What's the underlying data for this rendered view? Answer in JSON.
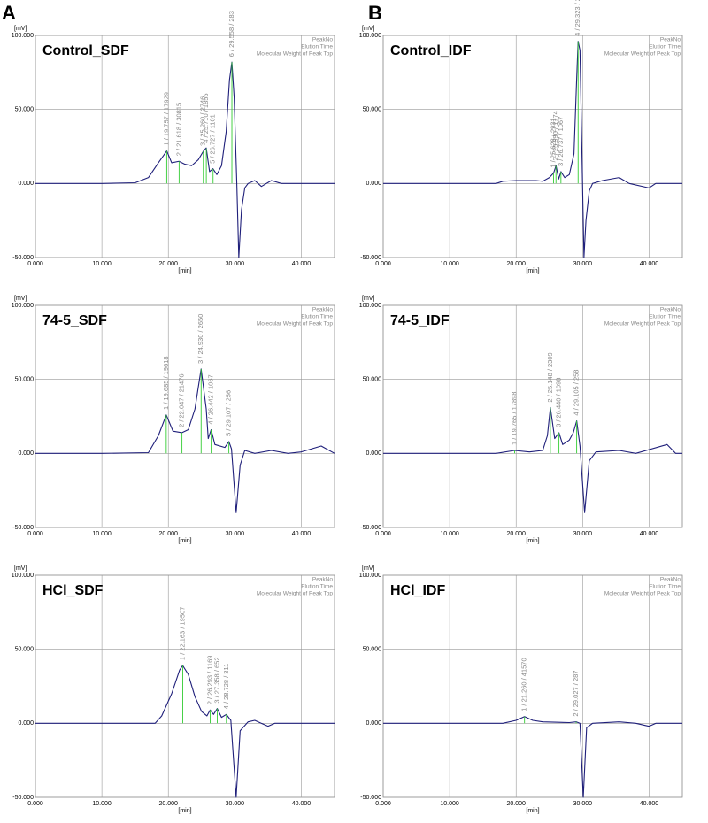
{
  "panels": [
    "A",
    "B"
  ],
  "chart_data": [
    {
      "type": "line",
      "title": "Control_SDF",
      "ylabel": "[mV]",
      "xlabel": "[min]",
      "header_labels": [
        "PeakNo",
        "Elution Time",
        "Molecular Weight of Peak Top"
      ],
      "xlim": [
        0,
        45
      ],
      "xticks": [
        {
          "value": 0,
          "label": "0.000"
        },
        {
          "value": 10,
          "label": "10.000"
        },
        {
          "value": 20,
          "label": "20.000"
        },
        {
          "value": 30,
          "label": "30.000"
        },
        {
          "value": 40,
          "label": "40.000"
        }
      ],
      "ylim": [
        -50,
        100
      ],
      "yticks": [
        {
          "value": -50,
          "label": "-50.000"
        },
        {
          "value": 0,
          "label": "0.000"
        },
        {
          "value": 50,
          "label": "50.000"
        },
        {
          "value": 100,
          "label": "100.000"
        }
      ],
      "grid": true,
      "peak_color": "#33cc33",
      "x": [
        0,
        10,
        15,
        17,
        18.5,
        19.76,
        20.5,
        21.6,
        22.5,
        23.5,
        24.5,
        25.3,
        25.7,
        26.2,
        26.7,
        27.3,
        28,
        28.7,
        29.2,
        29.56,
        29.9,
        30.3,
        30.6,
        31,
        31.5,
        32,
        33,
        34,
        35.5,
        37,
        40,
        45
      ],
      "series": [
        {
          "color": "#1f1f7a",
          "values": [
            0,
            0,
            0.5,
            4,
            14,
            22,
            14,
            15,
            13,
            12,
            16,
            22,
            24,
            8,
            10,
            6,
            12,
            35,
            70,
            82,
            58,
            0,
            -50,
            -18,
            -3,
            0,
            2,
            -2,
            2,
            0,
            0,
            0
          ]
        }
      ],
      "peaks": [
        {
          "label": "1 / 19.757 / 17929",
          "x": 19.757
        },
        {
          "label": "2 / 21.618 / 30815",
          "x": 21.618
        },
        {
          "label": "3 / 25.260 / 2746",
          "x": 25.26
        },
        {
          "label": "4 / 25.710 / 1855",
          "x": 25.71
        },
        {
          "label": "5 / 26.727 / 1101",
          "x": 26.727
        },
        {
          "label": "6 / 29.558 / 283",
          "x": 29.558
        }
      ]
    },
    {
      "type": "line",
      "title": "Control_IDF",
      "ylabel": "[mV]",
      "xlabel": "[min]",
      "header_labels": [
        "PeakNo",
        "Elution Time",
        "Molecular Weight of Peak Top"
      ],
      "xlim": [
        0,
        45
      ],
      "xticks": [
        {
          "value": 0,
          "label": "0.000"
        },
        {
          "value": 10,
          "label": "10.000"
        },
        {
          "value": 20,
          "label": "20.000"
        },
        {
          "value": 30,
          "label": "30.000"
        },
        {
          "value": 40,
          "label": "40.000"
        }
      ],
      "ylim": [
        -50,
        100
      ],
      "yticks": [
        {
          "value": -50,
          "label": "-50.000"
        },
        {
          "value": 0,
          "label": "0.000"
        },
        {
          "value": 50,
          "label": "50.000"
        },
        {
          "value": 100,
          "label": "100.000"
        }
      ],
      "grid": true,
      "peak_color": "#33cc33",
      "x": [
        0,
        10,
        17,
        18,
        20,
        23,
        24,
        25,
        25.63,
        26.0,
        26.4,
        26.74,
        27.3,
        28,
        28.7,
        29.1,
        29.32,
        29.6,
        29.9,
        30.2,
        30.5,
        31,
        31.5,
        33,
        35.5,
        37,
        40,
        41,
        45
      ],
      "series": [
        {
          "color": "#1f1f7a",
          "values": [
            0,
            0,
            0,
            1.5,
            2,
            2,
            1.5,
            4,
            7,
            12,
            3,
            8,
            4,
            6,
            20,
            70,
            96,
            90,
            20,
            -50,
            -25,
            -5,
            0,
            2,
            4,
            0,
            -3,
            0,
            0
          ]
        }
      ],
      "peaks": [
        {
          "label": "1 / 25.628 / 2931",
          "x": 25.628
        },
        {
          "label": "2 / 25.990 / 1774",
          "x": 25.99
        },
        {
          "label": "3 / 26.737 / 1067",
          "x": 26.737
        },
        {
          "label": "4 / 29.323 / 273",
          "x": 29.323
        }
      ]
    },
    {
      "type": "line",
      "title": "74-5_SDF",
      "ylabel": "[mV]",
      "xlabel": "[min]",
      "header_labels": [
        "PeakNo",
        "Elution Time",
        "Molecular Weight of Peak Top"
      ],
      "xlim": [
        0,
        45
      ],
      "xticks": [
        {
          "value": 0,
          "label": "0.000"
        },
        {
          "value": 10,
          "label": "10.000"
        },
        {
          "value": 20,
          "label": "20.000"
        },
        {
          "value": 30,
          "label": "30.000"
        },
        {
          "value": 40,
          "label": "40.000"
        }
      ],
      "ylim": [
        -50,
        100
      ],
      "yticks": [
        {
          "value": -50,
          "label": "-50.000"
        },
        {
          "value": 0,
          "label": "0.000"
        },
        {
          "value": 50,
          "label": "50.000"
        },
        {
          "value": 100,
          "label": "100.000"
        }
      ],
      "grid": true,
      "peak_color": "#33cc33",
      "x": [
        0,
        10,
        17,
        18.5,
        19.69,
        20.7,
        22.05,
        23,
        24,
        24.93,
        25.7,
        26,
        26.44,
        27,
        28.5,
        29.11,
        29.5,
        30.2,
        30.8,
        31.5,
        33,
        35.5,
        38,
        40,
        43,
        45
      ],
      "series": [
        {
          "color": "#1f1f7a",
          "values": [
            0,
            0,
            0.5,
            12,
            26,
            15,
            14,
            16,
            30,
            57,
            30,
            10,
            16,
            6,
            4,
            8,
            3,
            -40,
            -8,
            2,
            0,
            2,
            0,
            1,
            5,
            0
          ]
        }
      ],
      "peaks": [
        {
          "label": "1 / 19.685 / 19618",
          "x": 19.685
        },
        {
          "label": "2 / 22.047 / 21476",
          "x": 22.047
        },
        {
          "label": "3 / 24.930 / 2650",
          "x": 24.93
        },
        {
          "label": "4 / 26.442 / 1067",
          "x": 26.442
        },
        {
          "label": "5 / 29.107 / 256",
          "x": 29.107
        }
      ]
    },
    {
      "type": "line",
      "title": "74-5_IDF",
      "ylabel": "[mV]",
      "xlabel": "[min]",
      "header_labels": [
        "PeakNo",
        "Elution Time",
        "Molecular Weight of Peak Top"
      ],
      "xlim": [
        0,
        45
      ],
      "xticks": [
        {
          "value": 0,
          "label": "0.000"
        },
        {
          "value": 10,
          "label": "10.000"
        },
        {
          "value": 20,
          "label": "20.000"
        },
        {
          "value": 30,
          "label": "30.000"
        },
        {
          "value": 40,
          "label": "40.000"
        }
      ],
      "ylim": [
        -50,
        100
      ],
      "yticks": [
        {
          "value": -50,
          "label": "-50.000"
        },
        {
          "value": 0,
          "label": "0.000"
        },
        {
          "value": 50,
          "label": "50.000"
        },
        {
          "value": 100,
          "label": "100.000"
        }
      ],
      "grid": true,
      "peak_color": "#33cc33",
      "x": [
        0,
        10,
        17,
        19.77,
        22,
        24,
        24.7,
        25.15,
        25.8,
        26.44,
        27,
        28,
        28.6,
        29.11,
        29.6,
        30.3,
        31,
        32,
        35.5,
        38,
        42.7,
        44,
        45
      ],
      "series": [
        {
          "color": "#1f1f7a",
          "values": [
            0,
            0,
            0,
            2,
            1,
            2,
            12,
            31,
            10,
            14,
            6,
            9,
            14,
            22,
            5,
            -40,
            -5,
            1,
            2,
            0,
            6,
            0,
            0
          ]
        }
      ],
      "peaks": [
        {
          "label": "1 / 19.765 / 17898",
          "x": 19.765
        },
        {
          "label": "2 / 25.148 / 2309",
          "x": 25.148
        },
        {
          "label": "3 / 26.440 / 1098",
          "x": 26.44
        },
        {
          "label": "4 / 29.105 / 258",
          "x": 29.105
        }
      ]
    },
    {
      "type": "line",
      "title": "HCl_SDF",
      "ylabel": "[mV]",
      "xlabel": "[min]",
      "header_labels": [
        "PeakNo",
        "Elution Time",
        "Molecular Weight of Peak Top"
      ],
      "xlim": [
        0,
        45
      ],
      "xticks": [
        {
          "value": 0,
          "label": "0.000"
        },
        {
          "value": 10,
          "label": "10.000"
        },
        {
          "value": 20,
          "label": "20.000"
        },
        {
          "value": 30,
          "label": "30.000"
        },
        {
          "value": 40,
          "label": "40.000"
        }
      ],
      "ylim": [
        -50,
        100
      ],
      "yticks": [
        {
          "value": -50,
          "label": "-50.000"
        },
        {
          "value": 0,
          "label": "0.000"
        },
        {
          "value": 50,
          "label": "50.000"
        },
        {
          "value": 100,
          "label": "100.000"
        }
      ],
      "grid": true,
      "peak_color": "#33cc33",
      "x": [
        0,
        10,
        18,
        19,
        20.5,
        21.7,
        22.16,
        23,
        24,
        25,
        25.8,
        26.29,
        26.8,
        27.36,
        28,
        28.73,
        29.4,
        30.2,
        30.8,
        32,
        33,
        34,
        35,
        36,
        45
      ],
      "series": [
        {
          "color": "#1f1f7a",
          "values": [
            0,
            0,
            0,
            5,
            20,
            36,
            39,
            33,
            18,
            8,
            5,
            9,
            6,
            10,
            4,
            6,
            2,
            -50,
            -5,
            1,
            2,
            0,
            -2,
            0,
            0
          ]
        }
      ],
      "peaks": [
        {
          "label": "1 / 22.163 / 19507",
          "x": 22.163
        },
        {
          "label": "2 / 26.293 / 1169",
          "x": 26.293
        },
        {
          "label": "3 / 27.358 / 652",
          "x": 27.358
        },
        {
          "label": "4 / 28.728 / 311",
          "x": 28.728
        }
      ]
    },
    {
      "type": "line",
      "title": "HCl_IDF",
      "ylabel": "[mV]",
      "xlabel": "[min]",
      "header_labels": [
        "PeakNo",
        "Elution Time",
        "Molecular Weight of Peak Top"
      ],
      "xlim": [
        0,
        45
      ],
      "xticks": [
        {
          "value": 0,
          "label": "0.000"
        },
        {
          "value": 10,
          "label": "10.000"
        },
        {
          "value": 20,
          "label": "20.000"
        },
        {
          "value": 30,
          "label": "30.000"
        },
        {
          "value": 40,
          "label": "40.000"
        }
      ],
      "ylim": [
        -50,
        100
      ],
      "yticks": [
        {
          "value": -50,
          "label": "-50.000"
        },
        {
          "value": 0,
          "label": "0.000"
        },
        {
          "value": 50,
          "label": "50.000"
        },
        {
          "value": 100,
          "label": "100.000"
        }
      ],
      "grid": true,
      "peak_color": "#33cc33",
      "x": [
        0,
        10,
        18,
        20,
        21.26,
        22.5,
        24,
        28,
        29.03,
        29.6,
        30.1,
        30.6,
        31.5,
        35.5,
        38,
        40,
        41,
        45
      ],
      "series": [
        {
          "color": "#1f1f7a",
          "values": [
            0,
            0,
            0,
            2,
            4.5,
            2,
            1,
            0.5,
            1,
            0,
            -50,
            -3,
            0,
            1,
            0,
            -2,
            0,
            0
          ]
        }
      ],
      "peaks": [
        {
          "label": "1 / 21.260 / 41570",
          "x": 21.26
        },
        {
          "label": "2 / 29.027 / 287",
          "x": 29.027
        }
      ]
    }
  ]
}
